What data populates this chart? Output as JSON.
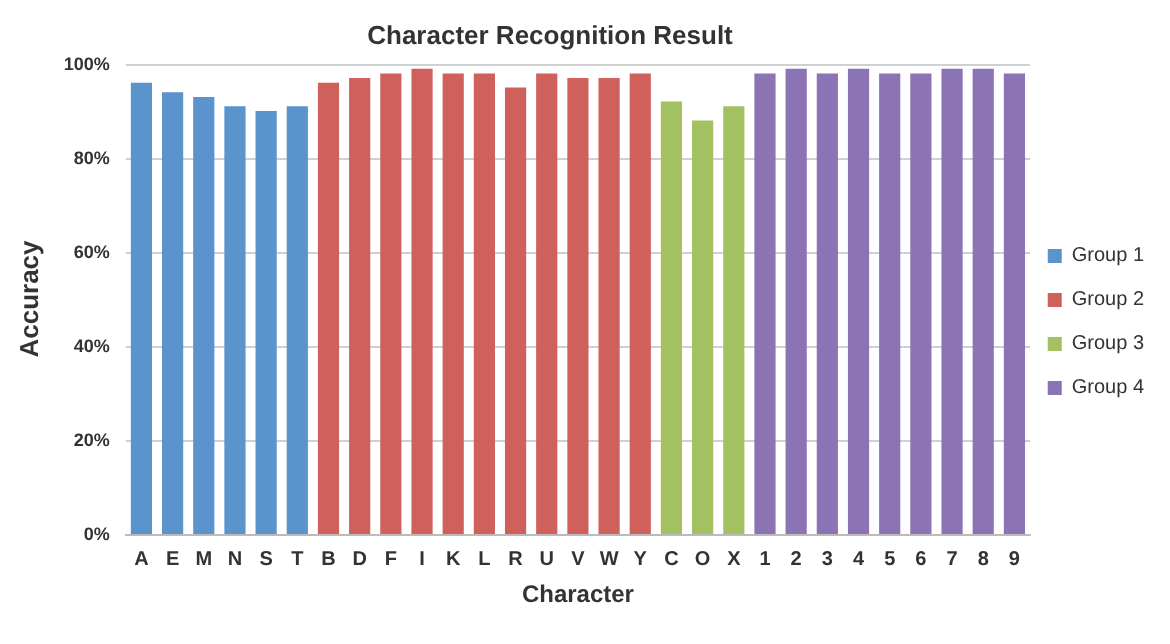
{
  "chart_data": {
    "type": "bar",
    "title": "Character Recognition Result",
    "xlabel": "Character",
    "ylabel": "Accuracy",
    "stacked": true,
    "categories": [
      "A",
      "E",
      "M",
      "N",
      "S",
      "T",
      "B",
      "D",
      "F",
      "I",
      "K",
      "L",
      "R",
      "U",
      "V",
      "W",
      "Y",
      "C",
      "O",
      "X",
      "1",
      "2",
      "3",
      "4",
      "5",
      "6",
      "7",
      "8",
      "9"
    ],
    "series": [
      {
        "name": "Group 1",
        "color": "#5b93cd",
        "values": [
          96,
          94,
          93,
          91,
          90,
          91,
          null,
          null,
          null,
          null,
          null,
          null,
          null,
          null,
          null,
          null,
          null,
          null,
          null,
          null,
          null,
          null,
          null,
          null,
          null,
          null,
          null,
          null,
          null
        ]
      },
      {
        "name": "Group 2",
        "color": "#d0605c",
        "values": [
          null,
          null,
          null,
          null,
          null,
          null,
          96,
          97,
          98,
          99,
          98,
          98,
          95,
          98,
          97,
          97,
          98,
          null,
          null,
          null,
          null,
          null,
          null,
          null,
          null,
          null,
          null,
          null,
          null
        ]
      },
      {
        "name": "Group 3",
        "color": "#a3c160",
        "values": [
          null,
          null,
          null,
          null,
          null,
          null,
          null,
          null,
          null,
          null,
          null,
          null,
          null,
          null,
          null,
          null,
          null,
          92,
          88,
          91,
          null,
          null,
          null,
          null,
          null,
          null,
          null,
          null,
          null
        ]
      },
      {
        "name": "Group 4",
        "color": "#8c74b4",
        "values": [
          null,
          null,
          null,
          null,
          null,
          null,
          null,
          null,
          null,
          null,
          null,
          null,
          null,
          null,
          null,
          null,
          null,
          null,
          null,
          null,
          98,
          99,
          98,
          99,
          98,
          98,
          99,
          99,
          98
        ]
      }
    ],
    "ylim": [
      0,
      100
    ],
    "yticks": [
      {
        "value": 0,
        "label": "0%"
      },
      {
        "value": 20,
        "label": "20%"
      },
      {
        "value": 40,
        "label": "40%"
      },
      {
        "value": 60,
        "label": "60%"
      },
      {
        "value": 80,
        "label": "80%"
      },
      {
        "value": 100,
        "label": "100%"
      }
    ],
    "grid": "y",
    "legend": "right"
  }
}
